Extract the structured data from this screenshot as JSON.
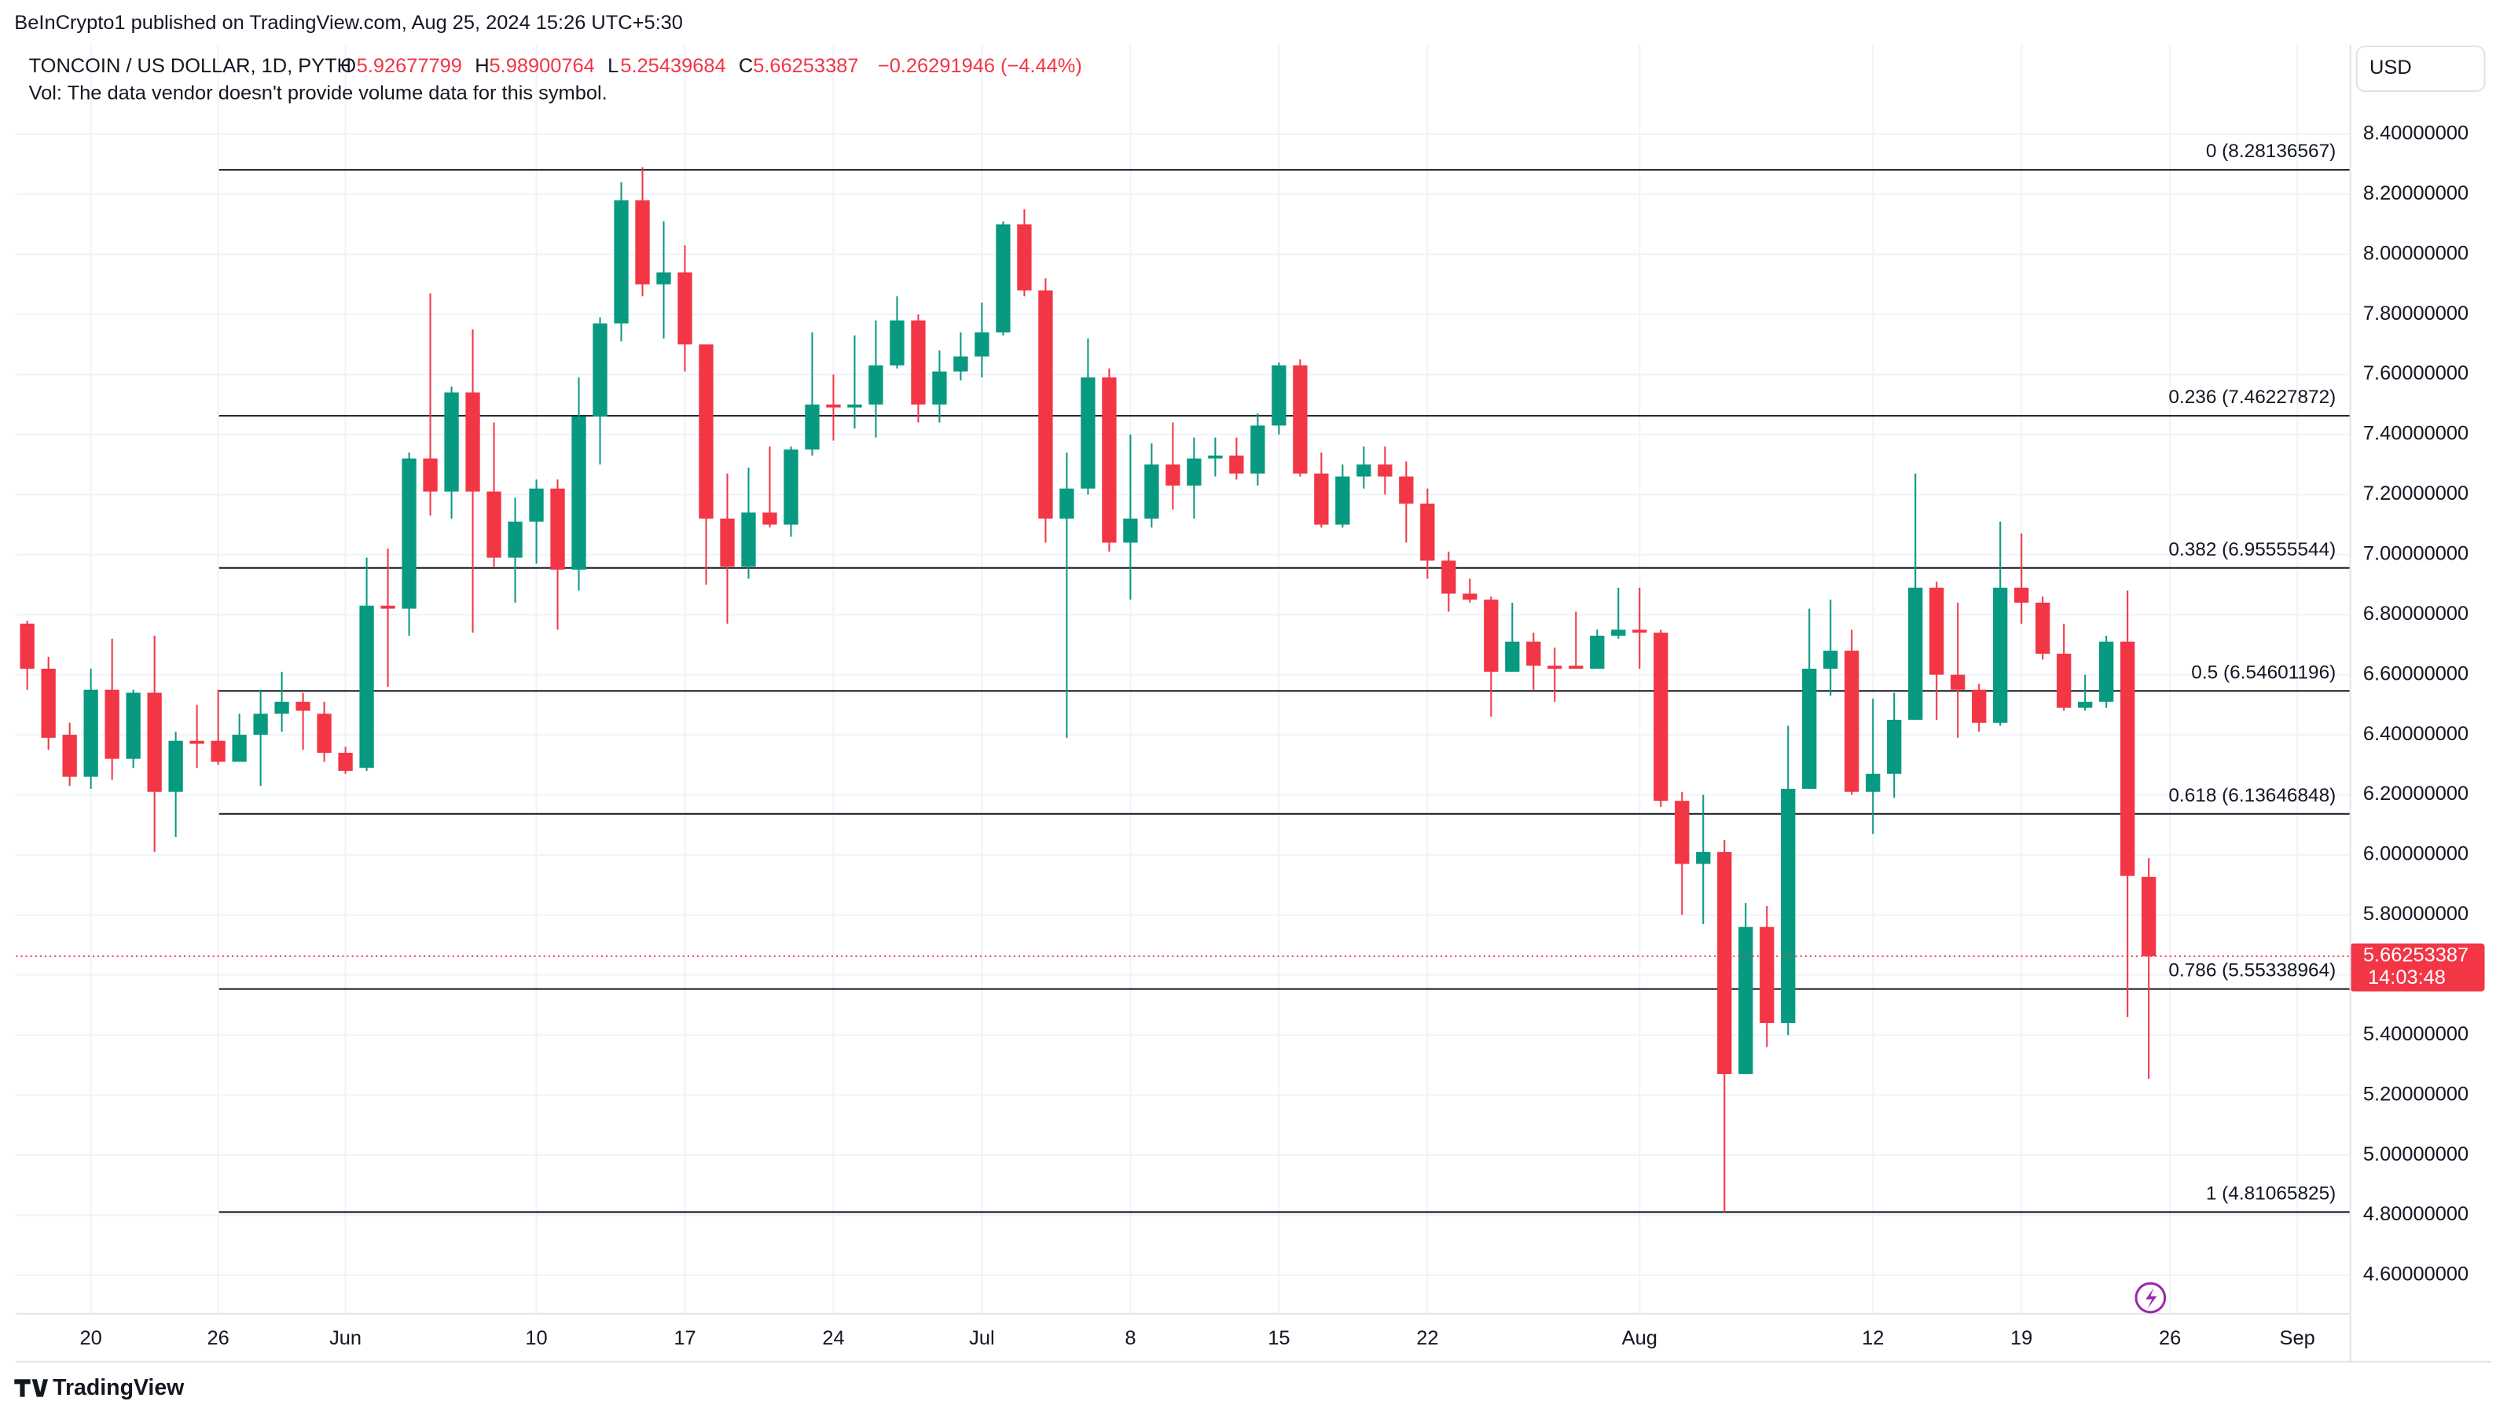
{
  "header": {
    "published": "BeInCrypto1 published on TradingView.com, Aug 25, 2024 15:26 UTC+5:30",
    "symbol": "TONCOIN / US DOLLAR, 1D, PYTH",
    "open_label": "O",
    "high_label": "H",
    "low_label": "L",
    "close_label": "C",
    "change": "−0.26291946 (−4.44%)",
    "volume_note": "Vol: The data vendor doesn't provide volume data for this symbol.",
    "currency": "USD",
    "countdown": "14:03:48",
    "brand": "TradingView"
  },
  "chart_data": {
    "type": "candlestick",
    "up_color": "#089981",
    "down_color": "#f23645",
    "open": [
      6.77,
      6.62,
      6.4,
      6.26,
      6.55,
      6.32,
      6.54,
      6.21,
      6.38,
      6.38,
      6.31,
      6.4,
      6.47,
      6.51,
      6.47,
      6.34,
      6.29,
      6.83,
      6.82,
      7.32,
      7.21,
      7.54,
      7.21,
      6.99,
      7.11,
      7.22,
      6.95,
      7.46,
      7.77,
      8.18,
      7.9,
      7.94,
      7.7,
      7.12,
      6.96,
      7.14,
      7.1,
      7.35,
      7.5,
      7.49,
      7.5,
      7.63,
      7.78,
      7.5,
      7.61,
      7.66,
      7.74,
      8.1,
      7.88,
      7.12,
      7.22,
      7.59,
      7.04,
      7.12,
      7.3,
      7.23,
      7.32,
      7.33,
      7.27,
      7.43,
      7.63,
      7.27,
      7.1,
      7.26,
      7.3,
      7.26,
      7.17,
      6.98,
      6.87,
      6.85,
      6.61,
      6.71,
      6.63,
      6.63,
      6.62,
      6.73,
      6.75,
      6.74,
      6.18,
      5.97,
      6.01,
      5.27,
      5.76,
      5.44,
      6.22,
      6.62,
      6.68,
      6.21,
      6.27,
      6.45,
      6.89,
      6.6,
      6.55,
      6.44,
      6.89,
      6.84,
      6.67,
      6.49,
      6.51,
      6.71,
      5.92677799
    ],
    "high": [
      6.78,
      6.66,
      6.44,
      6.62,
      6.72,
      6.55,
      6.73,
      6.41,
      6.5,
      6.55,
      6.47,
      6.55,
      6.61,
      6.54,
      6.51,
      6.36,
      6.99,
      7.02,
      7.34,
      7.87,
      7.56,
      7.75,
      7.44,
      7.19,
      7.25,
      7.25,
      7.59,
      7.79,
      8.24,
      8.29,
      8.11,
      8.03,
      7.7,
      7.27,
      7.29,
      7.36,
      7.36,
      7.74,
      7.6,
      7.73,
      7.78,
      7.86,
      7.8,
      7.68,
      7.74,
      7.84,
      8.11,
      8.15,
      7.92,
      7.34,
      7.72,
      7.62,
      7.4,
      7.37,
      7.44,
      7.39,
      7.39,
      7.39,
      7.47,
      7.64,
      7.65,
      7.34,
      7.3,
      7.36,
      7.36,
      7.31,
      7.22,
      7.01,
      6.92,
      6.86,
      6.84,
      6.74,
      6.69,
      6.81,
      6.75,
      6.89,
      6.89,
      6.75,
      6.21,
      6.2,
      6.05,
      5.84,
      5.83,
      6.43,
      6.82,
      6.85,
      6.75,
      6.52,
      6.54,
      7.27,
      6.91,
      6.84,
      6.57,
      7.11,
      7.07,
      6.86,
      6.77,
      6.6,
      6.73,
      6.88,
      5.98900764
    ],
    "low": [
      6.55,
      6.35,
      6.23,
      6.22,
      6.25,
      6.29,
      6.01,
      6.06,
      6.29,
      6.3,
      6.31,
      6.23,
      6.41,
      6.35,
      6.31,
      6.27,
      6.28,
      6.56,
      6.73,
      7.13,
      7.12,
      6.74,
      6.96,
      6.84,
      6.97,
      6.75,
      6.88,
      7.3,
      7.71,
      7.86,
      7.72,
      7.61,
      6.9,
      6.77,
      6.92,
      7.09,
      7.06,
      7.33,
      7.38,
      7.42,
      7.39,
      7.62,
      7.44,
      7.44,
      7.58,
      7.59,
      7.73,
      7.86,
      7.04,
      6.39,
      7.2,
      7.01,
      6.85,
      7.09,
      7.15,
      7.12,
      7.26,
      7.25,
      7.23,
      7.4,
      7.26,
      7.09,
      7.09,
      7.22,
      7.2,
      7.04,
      6.92,
      6.81,
      6.84,
      6.46,
      6.61,
      6.55,
      6.51,
      6.62,
      6.62,
      6.72,
      6.62,
      6.16,
      5.8,
      5.77,
      4.81,
      5.27,
      5.36,
      5.4,
      6.22,
      6.53,
      6.2,
      6.07,
      6.19,
      6.45,
      6.45,
      6.39,
      6.41,
      6.43,
      6.77,
      6.65,
      6.48,
      6.48,
      6.49,
      5.46,
      5.25439684
    ],
    "close": [
      6.62,
      6.39,
      6.26,
      6.55,
      6.32,
      6.54,
      6.21,
      6.38,
      6.37,
      6.31,
      6.4,
      6.47,
      6.51,
      6.48,
      6.34,
      6.28,
      6.83,
      6.82,
      7.32,
      7.21,
      7.54,
      7.21,
      6.99,
      7.11,
      7.22,
      6.95,
      7.46,
      7.77,
      8.18,
      7.9,
      7.94,
      7.7,
      7.12,
      6.96,
      7.14,
      7.1,
      7.35,
      7.5,
      7.49,
      7.5,
      7.63,
      7.78,
      7.5,
      7.61,
      7.66,
      7.74,
      8.1,
      7.88,
      7.12,
      7.22,
      7.59,
      7.04,
      7.12,
      7.3,
      7.23,
      7.32,
      7.33,
      7.27,
      7.43,
      7.63,
      7.27,
      7.1,
      7.26,
      7.3,
      7.26,
      7.17,
      6.98,
      6.87,
      6.85,
      6.61,
      6.71,
      6.63,
      6.62,
      6.62,
      6.73,
      6.75,
      6.74,
      6.18,
      5.97,
      6.01,
      5.27,
      5.76,
      5.44,
      6.22,
      6.62,
      6.68,
      6.21,
      6.27,
      6.45,
      6.89,
      6.6,
      6.55,
      6.44,
      6.89,
      6.84,
      6.67,
      6.49,
      6.51,
      6.71,
      5.93,
      5.66253387
    ],
    "xlim": [
      -0.53,
      109.5
    ],
    "xticks": [
      {
        "value": 3,
        "label": "20"
      },
      {
        "value": 9,
        "label": "26"
      },
      {
        "value": 15,
        "label": "Jun"
      },
      {
        "value": 24,
        "label": "10"
      },
      {
        "value": 31,
        "label": "17"
      },
      {
        "value": 38,
        "label": "24"
      },
      {
        "value": 45,
        "label": "Jul"
      },
      {
        "value": 52,
        "label": "8"
      },
      {
        "value": 59,
        "label": "15"
      },
      {
        "value": 66,
        "label": "22"
      },
      {
        "value": 76,
        "label": "Aug"
      },
      {
        "value": 87,
        "label": "12"
      },
      {
        "value": 94,
        "label": "19"
      },
      {
        "value": 101,
        "label": "26"
      },
      {
        "value": 107,
        "label": "Sep"
      }
    ],
    "ylim": [
      4.472,
      8.698
    ],
    "yticks": [
      {
        "value": 4.6,
        "label": "4.60000000"
      },
      {
        "value": 4.8,
        "label": "4.80000000"
      },
      {
        "value": 5.0,
        "label": "5.00000000"
      },
      {
        "value": 5.2,
        "label": "5.20000000"
      },
      {
        "value": 5.4,
        "label": "5.40000000"
      },
      {
        "value": 5.6,
        "label": "5.60000000"
      },
      {
        "value": 5.8,
        "label": "5.80000000"
      },
      {
        "value": 6.0,
        "label": "6.00000000"
      },
      {
        "value": 6.2,
        "label": "6.20000000"
      },
      {
        "value": 6.4,
        "label": "6.40000000"
      },
      {
        "value": 6.6,
        "label": "6.60000000"
      },
      {
        "value": 6.8,
        "label": "6.80000000"
      },
      {
        "value": 7.0,
        "label": "7.00000000"
      },
      {
        "value": 7.2,
        "label": "7.20000000"
      },
      {
        "value": 7.4,
        "label": "7.40000000"
      },
      {
        "value": 7.6,
        "label": "7.60000000"
      },
      {
        "value": 7.8,
        "label": "7.80000000"
      },
      {
        "value": 8.0,
        "label": "8.00000000"
      },
      {
        "value": 8.2,
        "label": "8.20000000"
      },
      {
        "value": 8.4,
        "label": "8.40000000"
      }
    ],
    "grid": true,
    "fib_levels": [
      {
        "value": 8.28136567,
        "label": "0 (8.28136567)"
      },
      {
        "value": 7.46227872,
        "label": "0.236 (7.46227872)"
      },
      {
        "value": 6.95555544,
        "label": "0.382 (6.95555544)"
      },
      {
        "value": 6.54601196,
        "label": "0.5 (6.54601196)"
      },
      {
        "value": 6.13646848,
        "label": "0.618 (6.13646848)"
      },
      {
        "value": 5.55338964,
        "label": "0.786 (5.55338964)"
      },
      {
        "value": 4.81065825,
        "label": "1 (4.81065825)"
      }
    ]
  }
}
